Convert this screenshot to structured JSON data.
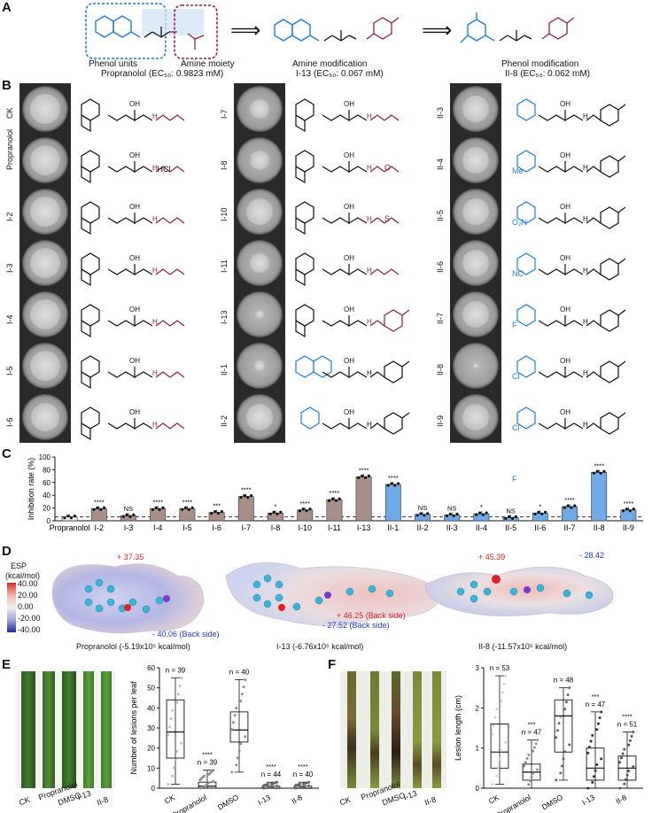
{
  "panels": {
    "A": "A",
    "B": "B",
    "C": "C",
    "D": "D",
    "E": "E",
    "F": "F"
  },
  "panel_a": {
    "phenol_units": "Phenol units",
    "amine_moiety": "Amine moiety",
    "propranolol_caption": "Propranolol (EC₅₀: 0.9823 mM)",
    "amine_mod": "Amine modification",
    "i13_caption": "I-13 (EC₅₀: 0.067 mM)",
    "phenol_mod": "Phenol modification",
    "ii8_caption": "II-8 (EC₅₀: 0.062 mM)",
    "arrow": "⟹"
  },
  "panel_b": {
    "col1": [
      "CK",
      "Propranolol",
      "I-2",
      "I-3",
      "I-4",
      "I-5",
      "I-6"
    ],
    "col2": [
      "I-7",
      "I-8",
      "I-10",
      "I-11",
      "I-13",
      "II-1",
      "II-2"
    ],
    "col3": [
      "II-3",
      "II-4",
      "II-5",
      "II-6",
      "II-7",
      "II-8",
      "II-9"
    ],
    "hcl": "· HCl",
    "subst": {
      "me": "Me",
      "no2": "O₂N",
      "nc": "NC",
      "f": "F",
      "cl": "Cl",
      "s": "S",
      "o": "O",
      "oh": "OH",
      "nh": "H",
      "n": "N"
    }
  },
  "chart_data": [
    {
      "type": "bar",
      "ylabel": "Inhibition rate (%)",
      "ylim": [
        0,
        100
      ],
      "yticks": [
        0,
        20,
        40,
        60,
        80,
        100
      ],
      "categories": [
        "Propranolol",
        "I-2",
        "I-3",
        "I-4",
        "I-5",
        "I-6",
        "I-7",
        "I-8",
        "I-10",
        "I-11",
        "I-13",
        "II-1",
        "II-2",
        "II-3",
        "II-4",
        "II-5",
        "II-6",
        "II-7",
        "II-8",
        "II-9"
      ],
      "values": [
        6,
        19,
        8,
        19,
        19,
        13,
        38,
        12,
        17,
        33,
        69,
        57,
        10,
        9,
        11,
        5,
        12,
        22,
        76,
        17
      ],
      "significance": [
        "",
        "****",
        "NS",
        "****",
        "****",
        "***",
        "****",
        "*",
        "****",
        "****",
        "****",
        "****",
        "NS",
        "NS",
        "*",
        "NS",
        "*",
        "****",
        "****",
        "****"
      ],
      "colors": {
        "series_I": "#a98f8a",
        "series_II": "#6fa9e6",
        "reference": "#e8e8e8"
      },
      "reference_line": 6
    },
    {
      "type": "box",
      "ylabel": "Number of lesions per leaf",
      "ylim": [
        0,
        60
      ],
      "yticks": [
        0,
        10,
        20,
        30,
        40,
        50,
        60
      ],
      "categories": [
        "CK",
        "Propranolol",
        "DMSO",
        "I-13",
        "II-8"
      ],
      "n_labels": [
        "n = 39",
        "n = 39",
        "n = 40",
        "n = 44",
        "n = 40"
      ],
      "significance": [
        "",
        "****",
        "",
        "****",
        "****"
      ],
      "box": [
        {
          "min": 2,
          "q1": 15,
          "median": 28,
          "q3": 44,
          "max": 55
        },
        {
          "min": 0,
          "q1": 0,
          "median": 1,
          "q3": 3,
          "max": 9
        },
        {
          "min": 8,
          "q1": 23,
          "median": 29,
          "q3": 38,
          "max": 54
        },
        {
          "min": 0,
          "q1": 0,
          "median": 0,
          "q3": 1,
          "max": 3
        },
        {
          "min": 0,
          "q1": 0,
          "median": 0,
          "q3": 1,
          "max": 3
        }
      ]
    },
    {
      "type": "box",
      "ylabel": "Lesion length (cm)",
      "ylim": [
        0,
        3
      ],
      "yticks": [
        0,
        1,
        2,
        3
      ],
      "categories": [
        "CK",
        "Propranolol",
        "DMSO",
        "I-13",
        "II-8"
      ],
      "n_labels": [
        "n = 53",
        "n = 47",
        "n = 48",
        "n = 47",
        "n = 51"
      ],
      "significance": [
        "",
        "***",
        "",
        "***",
        "****"
      ],
      "box": [
        {
          "min": 0.1,
          "q1": 0.5,
          "median": 0.9,
          "q3": 1.6,
          "max": 2.8
        },
        {
          "min": 0,
          "q1": 0.2,
          "median": 0.4,
          "q3": 0.6,
          "max": 1.2
        },
        {
          "min": 0.2,
          "q1": 0.9,
          "median": 1.8,
          "q3": 2.2,
          "max": 2.5
        },
        {
          "min": 0,
          "q1": 0.2,
          "median": 0.5,
          "q3": 1.0,
          "max": 1.9
        },
        {
          "min": 0,
          "q1": 0.2,
          "median": 0.5,
          "q3": 0.8,
          "max": 1.4
        }
      ]
    }
  ],
  "panel_d": {
    "legend_title": "ESP",
    "legend_unit": "(kcal/mol)",
    "legend_ticks": [
      "40.00",
      "20.00",
      "0.00",
      "-20.00",
      "-40.00"
    ],
    "m1_pos": "+ 37.35",
    "m1_neg": "- 40.06 (Back side)",
    "m1_caption": "Propranolol (-5.19x10⁵ kcal/mol)",
    "m2_pos": "+ 46.25 (Back side)",
    "m2_neg": "- 27.52 (Back side)",
    "m2_caption": "I-13 (-6.76x10⁵ kcal/mol)",
    "m3_pos": "+ 45.39",
    "m3_neg": "- 28.42",
    "m3_caption": "II-8 (-11.57x10⁵ kcal/mol)"
  },
  "panel_e_leaf_labels": [
    "CK",
    "Propranolol",
    "DMSO",
    "I-13",
    "II-8"
  ],
  "panel_f_leaf_labels": [
    "CK",
    "Propranolol",
    "DMSO",
    "I-13",
    "II-8"
  ]
}
